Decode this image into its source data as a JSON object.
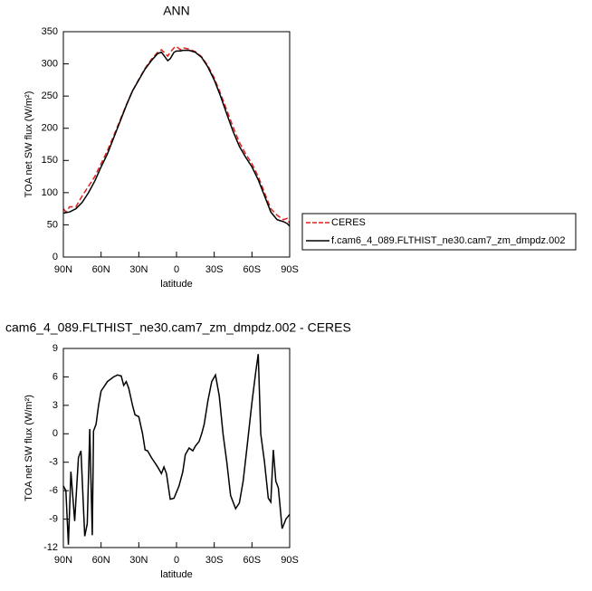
{
  "chart_data": [
    {
      "type": "line",
      "title": "ANN",
      "x_label": "latitude",
      "y_label": "TOA net SW flux (W/m²)",
      "x": [
        90,
        88,
        85,
        80,
        75,
        70,
        65,
        60,
        55,
        50,
        45,
        40,
        35,
        30,
        25,
        20,
        15,
        12,
        10,
        7,
        5,
        2,
        0,
        -3,
        -5,
        -10,
        -15,
        -20,
        -25,
        -30,
        -35,
        -40,
        -45,
        -50,
        -55,
        -60,
        -65,
        -70,
        -75,
        -80,
        -85,
        -88,
        -90
      ],
      "series": [
        {
          "name": "CERES",
          "color": "#e0201b",
          "dashed": true,
          "values": [
            75,
            70,
            78,
            78,
            95,
            110,
            125,
            145,
            165,
            188,
            212,
            236,
            258,
            276,
            293,
            307,
            318,
            322,
            318,
            312,
            318,
            325,
            327,
            322,
            325,
            323,
            319,
            311,
            297,
            278,
            254,
            228,
            202,
            178,
            160,
            145,
            125,
            100,
            75,
            65,
            58,
            60,
            52
          ]
        },
        {
          "name": "f.cam6_4_089.FLTHIST_ne30.cam7_zm_dmpdz.002",
          "color": "#000000",
          "dashed": false,
          "values": [
            68,
            69,
            70,
            75,
            85,
            100,
            118,
            140,
            160,
            185,
            210,
            235,
            258,
            275,
            292,
            305,
            316,
            318,
            313,
            305,
            308,
            318,
            320,
            320,
            321,
            321,
            318,
            310,
            295,
            275,
            250,
            222,
            195,
            172,
            155,
            140,
            120,
            95,
            70,
            58,
            55,
            52,
            48
          ]
        }
      ],
      "xlim": [
        90,
        -90
      ],
      "xticks": [
        {
          "value": 90,
          "label": "90N"
        },
        {
          "value": 60,
          "label": "60N"
        },
        {
          "value": 30,
          "label": "30N"
        },
        0,
        {
          "value": -30,
          "label": "30S"
        },
        {
          "value": -60,
          "label": "60S"
        },
        {
          "value": -90,
          "label": "90S"
        }
      ],
      "ylim": [
        0,
        350
      ],
      "yticks": [
        0,
        50,
        100,
        150,
        200,
        250,
        300,
        350
      ],
      "legend": "right"
    },
    {
      "type": "line",
      "title": "cam6_4_089.FLTHIST_ne30.cam7_zm_dmpdz.002 - CERES",
      "x_label": "latitude",
      "y_label": "TOA net SW flux (W/m²)",
      "x": [
        90,
        88,
        86,
        84,
        81,
        78,
        76,
        73,
        71,
        69,
        67,
        66,
        64,
        62,
        60,
        55,
        50,
        47,
        44,
        42,
        40,
        38,
        35,
        33,
        30,
        27,
        25,
        23,
        20,
        15,
        12,
        10,
        8,
        5,
        2,
        -2,
        -5,
        -7,
        -10,
        -13,
        -15,
        -18,
        -20,
        -22,
        -25,
        -28,
        -31,
        -34,
        -37,
        -40,
        -43,
        -47,
        -50,
        -53,
        -56,
        -60,
        -63,
        -65,
        -67,
        -70,
        -73,
        -75,
        -77,
        -79,
        -81,
        -84,
        -87,
        -90
      ],
      "series": [
        {
          "color": "#000000",
          "dashed": false,
          "values": [
            -5.5,
            -6,
            -11.7,
            -4,
            -9.2,
            -2.5,
            -1.8,
            -10.8,
            -9.5,
            0.5,
            -10.7,
            0.3,
            1,
            3,
            4.5,
            5.5,
            6,
            6.2,
            6.1,
            5.1,
            5.5,
            4.8,
            3,
            2,
            1.8,
            0,
            -1.7,
            -1.8,
            -2.5,
            -3.5,
            -4.2,
            -3.5,
            -4.2,
            -6.9,
            -6.8,
            -5.5,
            -4,
            -2.2,
            -1.5,
            -1.8,
            -1.3,
            -0.8,
            0,
            1,
            3.5,
            5.5,
            6.2,
            4,
            0,
            -3,
            -6.5,
            -7.9,
            -7.3,
            -5,
            -1.5,
            3.3,
            6.5,
            8.4,
            0,
            -3,
            -6.8,
            -7.2,
            -1.7,
            -5,
            -5.7,
            -10,
            -9,
            -8.5
          ]
        }
      ],
      "xlim": [
        90,
        -90
      ],
      "xticks": [
        {
          "value": 90,
          "label": "90N"
        },
        {
          "value": 60,
          "label": "60N"
        },
        {
          "value": 30,
          "label": "30N"
        },
        0,
        {
          "value": -30,
          "label": "30S"
        },
        {
          "value": -60,
          "label": "60S"
        },
        {
          "value": -90,
          "label": "90S"
        }
      ],
      "ylim": [
        -12,
        9
      ],
      "yticks": [
        -12,
        -9,
        -6,
        -3,
        0,
        3,
        6,
        9
      ]
    }
  ]
}
